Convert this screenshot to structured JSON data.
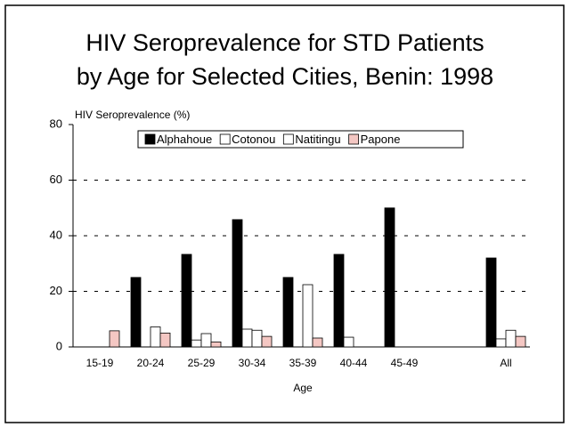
{
  "chart_data": {
    "type": "bar",
    "title": [
      "HIV Seroprevalence for STD Patients",
      "by Age for Selected Cities, Benin:  1998"
    ],
    "y_label": "HIV Seroprevalence (%)",
    "x_label": "Age",
    "categories": [
      "15-19",
      "20-24",
      "25-29",
      "30-34",
      "35-39",
      "40-44",
      "45-49",
      null,
      "All"
    ],
    "series": [
      {
        "name": "Alphahoue",
        "color": "#000000",
        "values": [
          0,
          25,
          33.3,
          45.8,
          25,
          33.3,
          50,
          null,
          32
        ]
      },
      {
        "name": "Cotonou",
        "color": "#ffffff",
        "values": [
          0,
          0,
          2.5,
          6.4,
          0,
          3.5,
          0,
          null,
          2.9
        ]
      },
      {
        "name": "Natitingu",
        "color": "#ffffff",
        "values": [
          0,
          7.2,
          4.8,
          6,
          22.4,
          0,
          0,
          null,
          6
        ]
      },
      {
        "name": "Papone",
        "color": "#f4c7c3",
        "values": [
          5.8,
          5,
          1.8,
          3.8,
          3.2,
          0,
          0,
          null,
          3.8
        ]
      }
    ],
    "ylim": [
      0,
      80
    ],
    "yticks": [
      0,
      20,
      40,
      60,
      80
    ],
    "grid": true,
    "legend": "top"
  }
}
